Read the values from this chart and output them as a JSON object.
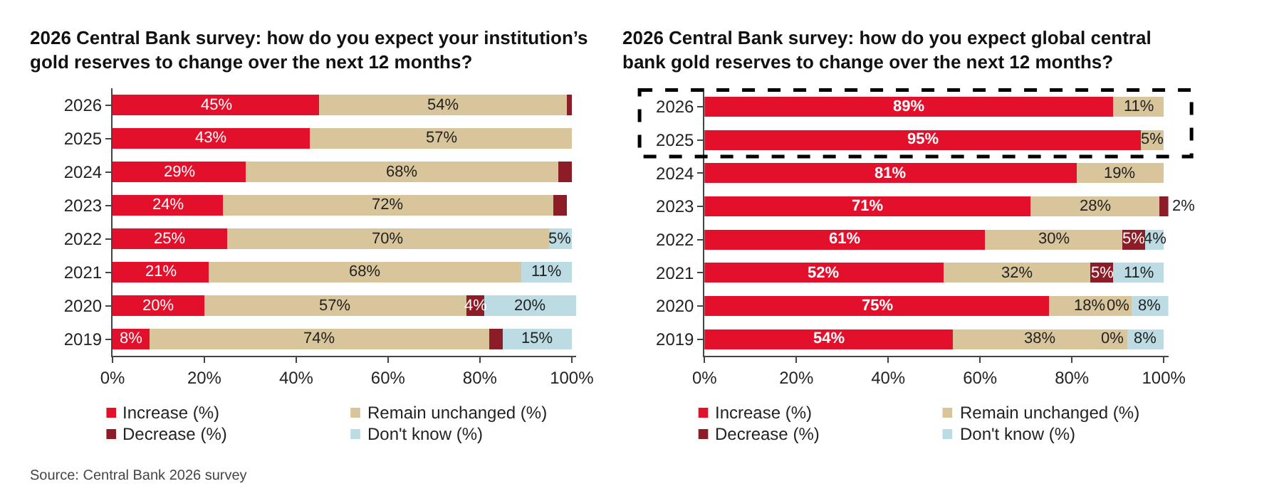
{
  "chart_data": [
    {
      "type": "bar",
      "orientation": "horizontal",
      "stacked": true,
      "title": "2026 Central Bank survey: how do you expect your institution’s gold reserves to change over the next 12 months?",
      "categories": [
        "2026",
        "2025",
        "2024",
        "2023",
        "2022",
        "2021",
        "2020",
        "2019"
      ],
      "series": [
        {
          "name": "Increase (%)",
          "color": "#e3102c",
          "values": [
            45,
            43,
            29,
            24,
            25,
            21,
            20,
            8
          ],
          "value_labels": [
            "45%",
            "43%",
            "29%",
            "24%",
            "25%",
            "21%",
            "20%",
            "8%"
          ]
        },
        {
          "name": "Remain unchanged (%)",
          "color": "#d8c59c",
          "values": [
            54,
            57,
            68,
            72,
            70,
            68,
            57,
            74
          ],
          "value_labels": [
            "54%",
            "57%",
            "68%",
            "72%",
            "70%",
            "68%",
            "57%",
            "74%"
          ]
        },
        {
          "name": "Decrease (%)",
          "color": "#8c1c26",
          "values": [
            1,
            0,
            3,
            3,
            0,
            0,
            4,
            3
          ],
          "value_labels": [
            null,
            null,
            null,
            null,
            null,
            null,
            "4%",
            null
          ]
        },
        {
          "name": "Don't know (%)",
          "color": "#bcdbe3",
          "values": [
            0,
            0,
            0,
            0,
            5,
            11,
            20,
            15
          ],
          "value_labels": [
            null,
            null,
            null,
            null,
            "5%",
            "11%",
            "20%",
            "15%"
          ]
        }
      ],
      "xlim": [
        0,
        101
      ],
      "xticks": [
        {
          "value": 0,
          "label": "0%"
        },
        {
          "value": 20,
          "label": "20%"
        },
        {
          "value": 40,
          "label": "40%"
        },
        {
          "value": 60,
          "label": "60%"
        },
        {
          "value": 80,
          "label": "80%"
        },
        {
          "value": 100,
          "label": "100%"
        }
      ],
      "legend": "bottom",
      "annotations": [
        "Source: Central Bank 2026 survey"
      ]
    },
    {
      "type": "bar",
      "orientation": "horizontal",
      "stacked": true,
      "title": "2026 Central Bank survey: how do you expect global central bank gold reserves to change over the next 12 months?",
      "categories": [
        "2026",
        "2025",
        "2024",
        "2023",
        "2022",
        "2021",
        "2020",
        "2019"
      ],
      "series": [
        {
          "name": "Increase (%)",
          "color": "#e3102c",
          "values": [
            89,
            95,
            81,
            71,
            61,
            52,
            75,
            54
          ],
          "value_labels": [
            "89%",
            "95%",
            "81%",
            "71%",
            "61%",
            "52%",
            "75%",
            "54%"
          ]
        },
        {
          "name": "Remain unchanged (%)",
          "color": "#d8c59c",
          "values": [
            11,
            5,
            19,
            28,
            30,
            32,
            18,
            38
          ],
          "value_labels": [
            "11%",
            "5%",
            "19%",
            "28%",
            "30%",
            "32%",
            "18%",
            "38%"
          ]
        },
        {
          "name": "Decrease (%)",
          "color": "#8c1c26",
          "values": [
            0,
            0,
            0,
            2,
            5,
            5,
            0,
            0
          ],
          "value_labels": [
            null,
            null,
            null,
            "2%",
            "5%",
            "5%",
            "0%",
            "0%"
          ]
        },
        {
          "name": "Don't know (%)",
          "color": "#bcdbe3",
          "values": [
            0,
            0,
            0,
            0,
            4,
            11,
            8,
            8
          ],
          "value_labels": [
            null,
            null,
            null,
            null,
            "4%",
            "11%",
            "8%",
            "8%"
          ]
        }
      ],
      "xlim": [
        0,
        101
      ],
      "xticks": [
        {
          "value": 0,
          "label": "0%"
        },
        {
          "value": 20,
          "label": "20%"
        },
        {
          "value": 40,
          "label": "40%"
        },
        {
          "value": 60,
          "label": "60%"
        },
        {
          "value": 80,
          "label": "80%"
        },
        {
          "value": 100,
          "label": "100%"
        }
      ],
      "legend": "bottom"
    }
  ]
}
